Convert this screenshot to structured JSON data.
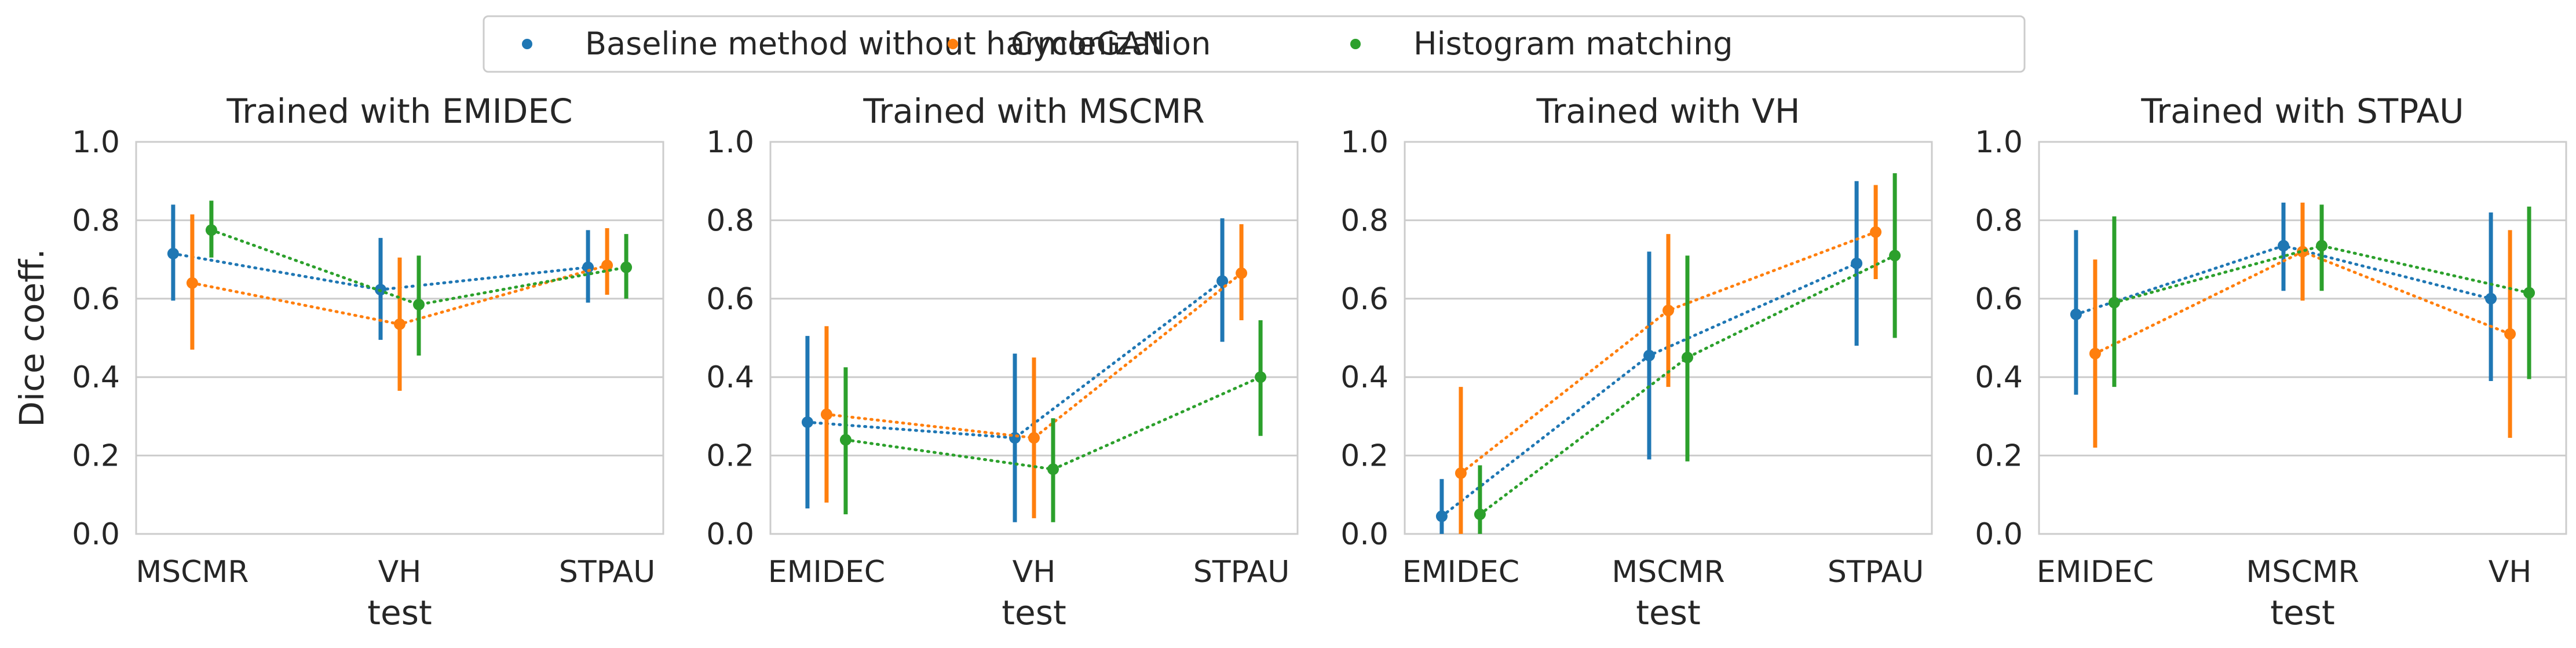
{
  "chart_data": {
    "type": "pointplot",
    "legend": {
      "placement": "top-center",
      "entries": [
        {
          "name": "Baseline method without harmonization",
          "color": "#1f77b4"
        },
        {
          "name": "CycleGAN",
          "color": "#ff7f0e"
        },
        {
          "name": "Histogram matching",
          "color": "#2ca02c"
        }
      ]
    },
    "ylabel": "Dice coeff.",
    "xlabel": "test",
    "ylim": [
      0.0,
      1.0
    ],
    "yticks": [
      "0.0",
      "0.2",
      "0.4",
      "0.6",
      "0.8",
      "1.0"
    ],
    "grid": "horizontal",
    "panels": [
      {
        "title": "Trained with EMIDEC",
        "categories": [
          "MSCMR",
          "VH",
          "STPAU"
        ],
        "series": [
          {
            "name": "Baseline method without harmonization",
            "values": [
              0.715,
              0.623,
              0.68
            ],
            "lower": [
              0.595,
              0.495,
              0.59
            ],
            "upper": [
              0.84,
              0.755,
              0.775
            ]
          },
          {
            "name": "CycleGAN",
            "values": [
              0.64,
              0.535,
              0.685
            ],
            "lower": [
              0.47,
              0.365,
              0.61
            ],
            "upper": [
              0.815,
              0.705,
              0.78
            ]
          },
          {
            "name": "Histogram matching",
            "values": [
              0.775,
              0.585,
              0.68
            ],
            "lower": [
              0.705,
              0.455,
              0.6
            ],
            "upper": [
              0.85,
              0.71,
              0.765
            ]
          }
        ]
      },
      {
        "title": "Trained with MSCMR",
        "categories": [
          "EMIDEC",
          "VH",
          "STPAU"
        ],
        "series": [
          {
            "name": "Baseline method without harmonization",
            "values": [
              0.285,
              0.245,
              0.645
            ],
            "lower": [
              0.065,
              0.03,
              0.49
            ],
            "upper": [
              0.505,
              0.46,
              0.805
            ]
          },
          {
            "name": "CycleGAN",
            "values": [
              0.305,
              0.245,
              0.665
            ],
            "lower": [
              0.08,
              0.04,
              0.545
            ],
            "upper": [
              0.53,
              0.45,
              0.79
            ]
          },
          {
            "name": "Histogram matching",
            "values": [
              0.24,
              0.165,
              0.4
            ],
            "lower": [
              0.05,
              0.03,
              0.25
            ],
            "upper": [
              0.425,
              0.295,
              0.545
            ]
          }
        ]
      },
      {
        "title": "Trained with VH",
        "categories": [
          "EMIDEC",
          "MSCMR",
          "STPAU"
        ],
        "series": [
          {
            "name": "Baseline method without harmonization",
            "values": [
              0.045,
              0.455,
              0.69
            ],
            "lower": [
              0.0,
              0.19,
              0.48
            ],
            "upper": [
              0.14,
              0.72,
              0.9
            ]
          },
          {
            "name": "CycleGAN",
            "values": [
              0.155,
              0.57,
              0.77
            ],
            "lower": [
              0.0,
              0.375,
              0.65
            ],
            "upper": [
              0.375,
              0.765,
              0.89
            ]
          },
          {
            "name": "Histogram matching",
            "values": [
              0.05,
              0.45,
              0.71
            ],
            "lower": [
              0.0,
              0.185,
              0.5
            ],
            "upper": [
              0.175,
              0.71,
              0.92
            ]
          }
        ]
      },
      {
        "title": "Trained with STPAU",
        "categories": [
          "EMIDEC",
          "MSCMR",
          "VH"
        ],
        "series": [
          {
            "name": "Baseline method without harmonization",
            "values": [
              0.56,
              0.735,
              0.6
            ],
            "lower": [
              0.355,
              0.62,
              0.39
            ],
            "upper": [
              0.775,
              0.845,
              0.82
            ]
          },
          {
            "name": "CycleGAN",
            "values": [
              0.46,
              0.72,
              0.51
            ],
            "lower": [
              0.22,
              0.595,
              0.245
            ],
            "upper": [
              0.7,
              0.845,
              0.775
            ]
          },
          {
            "name": "Histogram matching",
            "values": [
              0.59,
              0.735,
              0.615
            ],
            "lower": [
              0.375,
              0.62,
              0.395
            ],
            "upper": [
              0.81,
              0.84,
              0.835
            ]
          }
        ]
      }
    ]
  }
}
